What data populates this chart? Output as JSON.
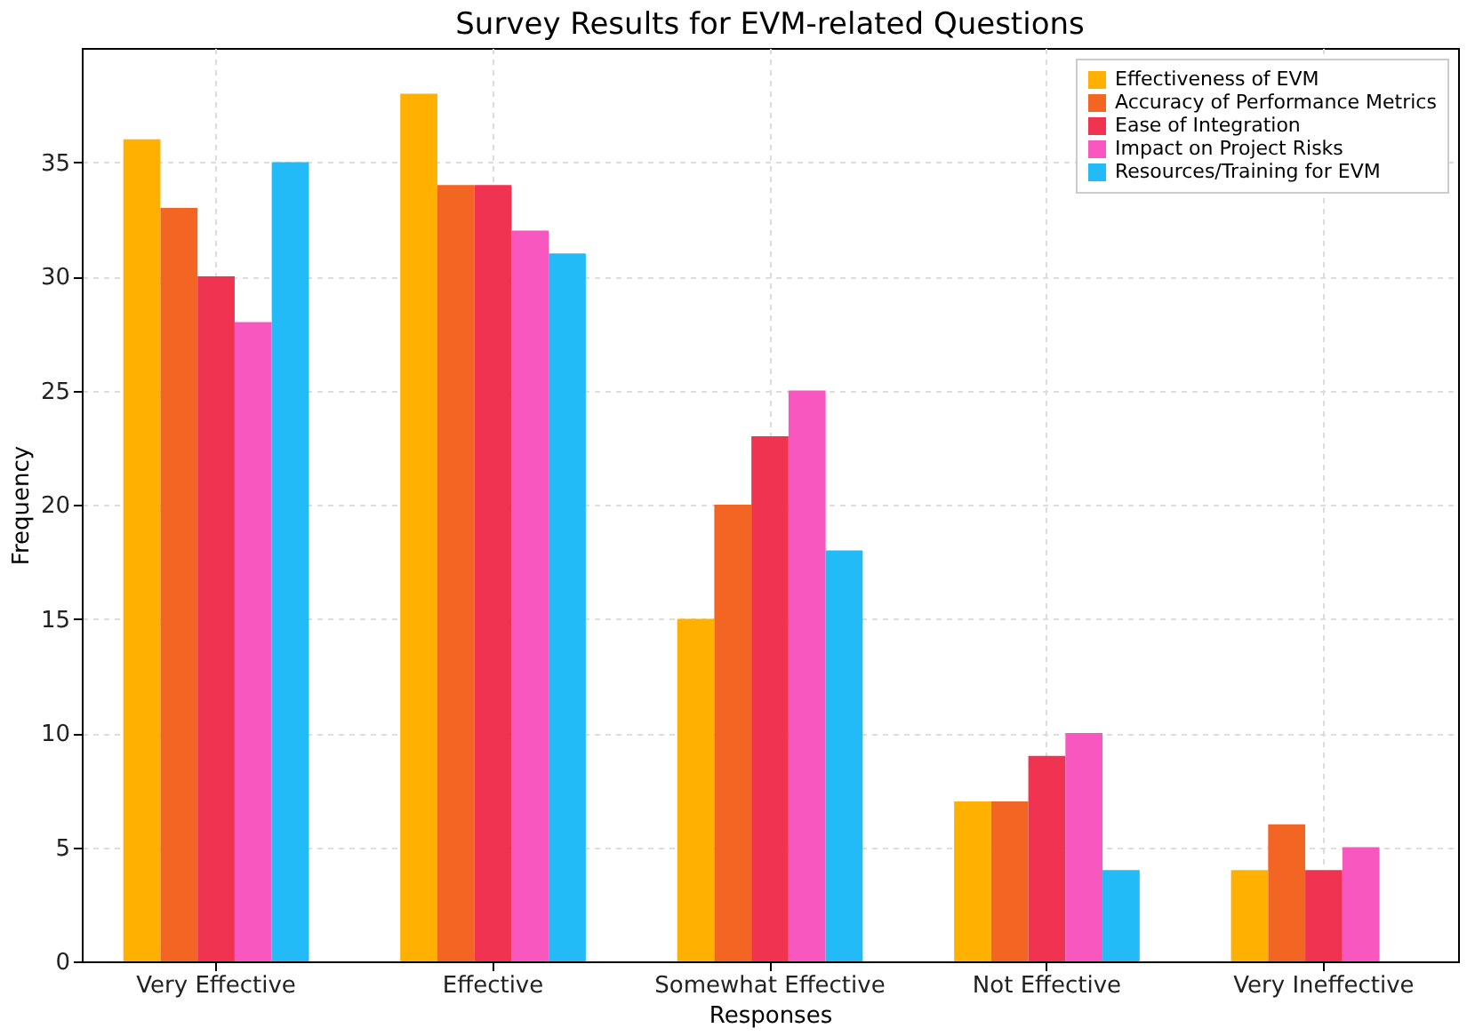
{
  "chart_data": {
    "type": "bar",
    "title": "Survey Results for EVM-related Questions",
    "xlabel": "Responses",
    "ylabel": "Frequency",
    "categories": [
      "Very Effective",
      "Effective",
      "Somewhat Effective",
      "Not Effective",
      "Very Ineffective"
    ],
    "series": [
      {
        "name": "Effectiveness of EVM",
        "color": "#ffb000",
        "values": [
          36,
          38,
          15,
          7,
          4
        ]
      },
      {
        "name": "Accuracy of Performance Metrics",
        "color": "#f26522",
        "values": [
          33,
          34,
          20,
          7,
          6
        ]
      },
      {
        "name": "Ease of Integration",
        "color": "#ef3350",
        "values": [
          30,
          34,
          23,
          9,
          4
        ]
      },
      {
        "name": "Impact on Project Risks",
        "color": "#f857c0",
        "values": [
          28,
          32,
          25,
          10,
          5
        ]
      },
      {
        "name": "Resources/Training for EVM",
        "color": "#22bbf7",
        "values": [
          35,
          31,
          18,
          4,
          0
        ]
      }
    ],
    "ylim": [
      0,
      40
    ],
    "yticks": [
      0,
      5,
      10,
      15,
      20,
      25,
      30,
      35
    ],
    "grid": true,
    "legend": "top right"
  }
}
